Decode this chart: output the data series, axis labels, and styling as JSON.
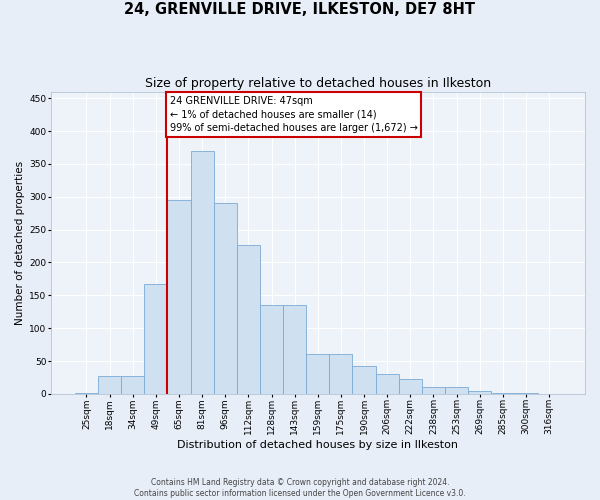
{
  "title": "24, GRENVILLE DRIVE, ILKESTON, DE7 8HT",
  "subtitle": "Size of property relative to detached houses in Ilkeston",
  "xlabel": "Distribution of detached houses by size in Ilkeston",
  "ylabel": "Number of detached properties",
  "categories": [
    "25sqm",
    "18sqm",
    "34sqm",
    "49sqm",
    "65sqm",
    "81sqm",
    "96sqm",
    "112sqm",
    "128sqm",
    "143sqm",
    "159sqm",
    "175sqm",
    "190sqm",
    "206sqm",
    "222sqm",
    "238sqm",
    "253sqm",
    "269sqm",
    "285sqm",
    "300sqm",
    "316sqm"
  ],
  "bar_heights": [
    2,
    28,
    28,
    168,
    295,
    370,
    290,
    226,
    135,
    135,
    60,
    60,
    42,
    30,
    22,
    11,
    11,
    5,
    2,
    1,
    0
  ],
  "bar_color": "#cfe0f0",
  "bar_edge_color": "#7aaad4",
  "vline_color": "#cc0000",
  "vline_x": 3.5,
  "annotation_text": "24 GRENVILLE DRIVE: 47sqm\n← 1% of detached houses are smaller (14)\n99% of semi-detached houses are larger (1,672) →",
  "annotation_box_edgecolor": "#cc0000",
  "annotation_bg": "#ffffff",
  "ylim": [
    0,
    460
  ],
  "yticks": [
    0,
    50,
    100,
    150,
    200,
    250,
    300,
    350,
    400,
    450
  ],
  "footer1": "Contains HM Land Registry data © Crown copyright and database right 2024.",
  "footer2": "Contains public sector information licensed under the Open Government Licence v3.0.",
  "bg_color": "#e8eef8",
  "plot_bg_color": "#eef3fa",
  "grid_color": "#ffffff",
  "title_fontsize": 10.5,
  "subtitle_fontsize": 9,
  "xlabel_fontsize": 8,
  "ylabel_fontsize": 7.5,
  "tick_fontsize": 6.5,
  "ann_fontsize": 7,
  "footer_fontsize": 5.5
}
